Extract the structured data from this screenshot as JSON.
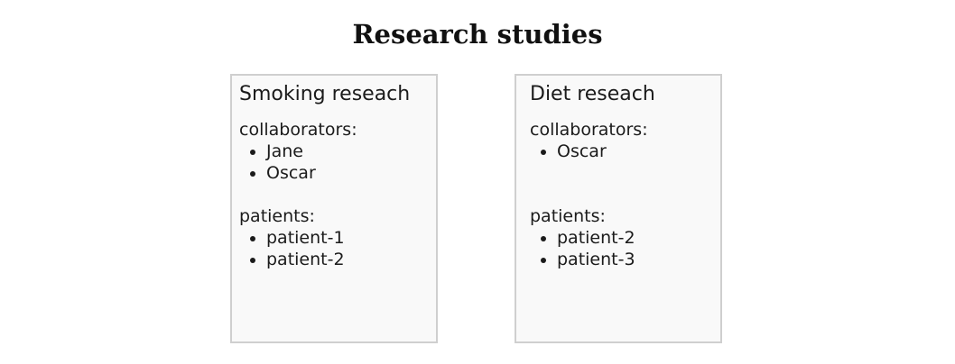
{
  "title": "Research studies",
  "studies": [
    {
      "name": "Smoking reseach",
      "collaborators_label": "collaborators:",
      "collaborators": [
        "Jane",
        "Oscar"
      ],
      "patients_label": "patients:",
      "patients": [
        "patient-1",
        "patient-2"
      ]
    },
    {
      "name": "Diet reseach",
      "collaborators_label": "collaborators:",
      "collaborators": [
        "Oscar"
      ],
      "patients_label": "patients:",
      "patients": [
        "patient-2",
        "patient-3"
      ]
    }
  ]
}
